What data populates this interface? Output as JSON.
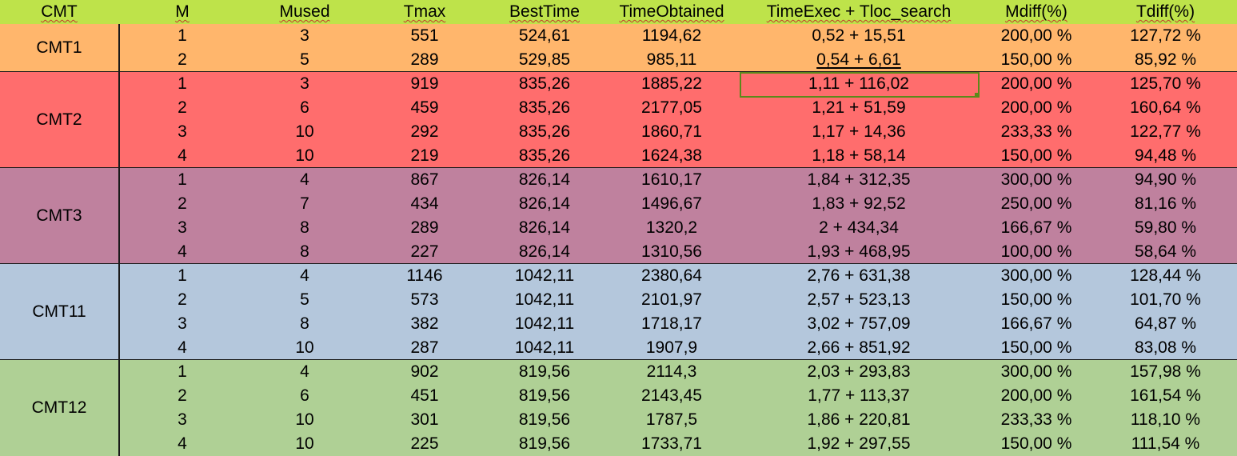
{
  "headers": [
    "CMT",
    "M",
    "Mused",
    "Tmax",
    "BestTime",
    "TimeObtained",
    "TimeExec + Tloc_search",
    "Mdiff(%)",
    "Tdiff(%)"
  ],
  "colors": {
    "header": "#bee34a",
    "CMT1": "#ffb66c",
    "CMT2": "#ff6d6d",
    "CMT3": "#bf819e",
    "CMT11": "#b4c7dc",
    "CMT12": "#afd095",
    "selection": "#5b8a1a"
  },
  "groups": [
    {
      "name": "CMT1",
      "rows": [
        [
          "1",
          "3",
          "551",
          "524,61",
          "1194,62",
          "0,52 + 15,51",
          "200,00 %",
          "127,72 %"
        ],
        [
          "2",
          "5",
          "289",
          "529,85",
          "985,11",
          "0,54 + 6,61",
          "150,00 %",
          "85,92 %"
        ]
      ]
    },
    {
      "name": "CMT2",
      "rows": [
        [
          "1",
          "3",
          "919",
          "835,26",
          "1885,22",
          "1,11 + 116,02",
          "200,00 %",
          "125,70 %"
        ],
        [
          "2",
          "6",
          "459",
          "835,26",
          "2177,05",
          "1,21 + 51,59",
          "200,00 %",
          "160,64 %"
        ],
        [
          "3",
          "10",
          "292",
          "835,26",
          "1860,71",
          "1,17 + 14,36",
          "233,33 %",
          "122,77 %"
        ],
        [
          "4",
          "10",
          "219",
          "835,26",
          "1624,38",
          "1,18 + 58,14",
          "150,00 %",
          "94,48 %"
        ]
      ]
    },
    {
      "name": "CMT3",
      "rows": [
        [
          "1",
          "4",
          "867",
          "826,14",
          "1610,17",
          "1,84 + 312,35",
          "300,00 %",
          "94,90 %"
        ],
        [
          "2",
          "7",
          "434",
          "826,14",
          "1496,67",
          "1,83 + 92,52",
          "250,00 %",
          "81,16 %"
        ],
        [
          "3",
          "8",
          "289",
          "826,14",
          "1320,2",
          "2 + 434,34",
          "166,67 %",
          "59,80 %"
        ],
        [
          "4",
          "8",
          "227",
          "826,14",
          "1310,56",
          "1,93 + 468,95",
          "100,00 %",
          "58,64 %"
        ]
      ]
    },
    {
      "name": "CMT11",
      "rows": [
        [
          "1",
          "4",
          "1146",
          "1042,11",
          "2380,64",
          "2,76 + 631,38",
          "300,00 %",
          "128,44 %"
        ],
        [
          "2",
          "5",
          "573",
          "1042,11",
          "2101,97",
          "2,57 + 523,13",
          "150,00 %",
          "101,70 %"
        ],
        [
          "3",
          "8",
          "382",
          "1042,11",
          "1718,17",
          "3,02 + 757,09",
          "166,67 %",
          "64,87 %"
        ],
        [
          "4",
          "10",
          "287",
          "1042,11",
          "1907,9",
          "2,66 + 851,92",
          "150,00 %",
          "83,08 %"
        ]
      ]
    },
    {
      "name": "CMT12",
      "rows": [
        [
          "1",
          "4",
          "902",
          "819,56",
          "2114,3",
          "2,03 + 293,83",
          "300,00 %",
          "157,98 %"
        ],
        [
          "2",
          "6",
          "451",
          "819,56",
          "2143,45",
          "1,77 + 113,37",
          "200,00 %",
          "161,54 %"
        ],
        [
          "3",
          "10",
          "301",
          "819,56",
          "1787,5",
          "1,86 + 220,81",
          "233,33 %",
          "118,10 %"
        ],
        [
          "4",
          "10",
          "225",
          "819,56",
          "1733,71",
          "1,92 + 297,55",
          "150,00 %",
          "111,54 %"
        ]
      ]
    }
  ]
}
